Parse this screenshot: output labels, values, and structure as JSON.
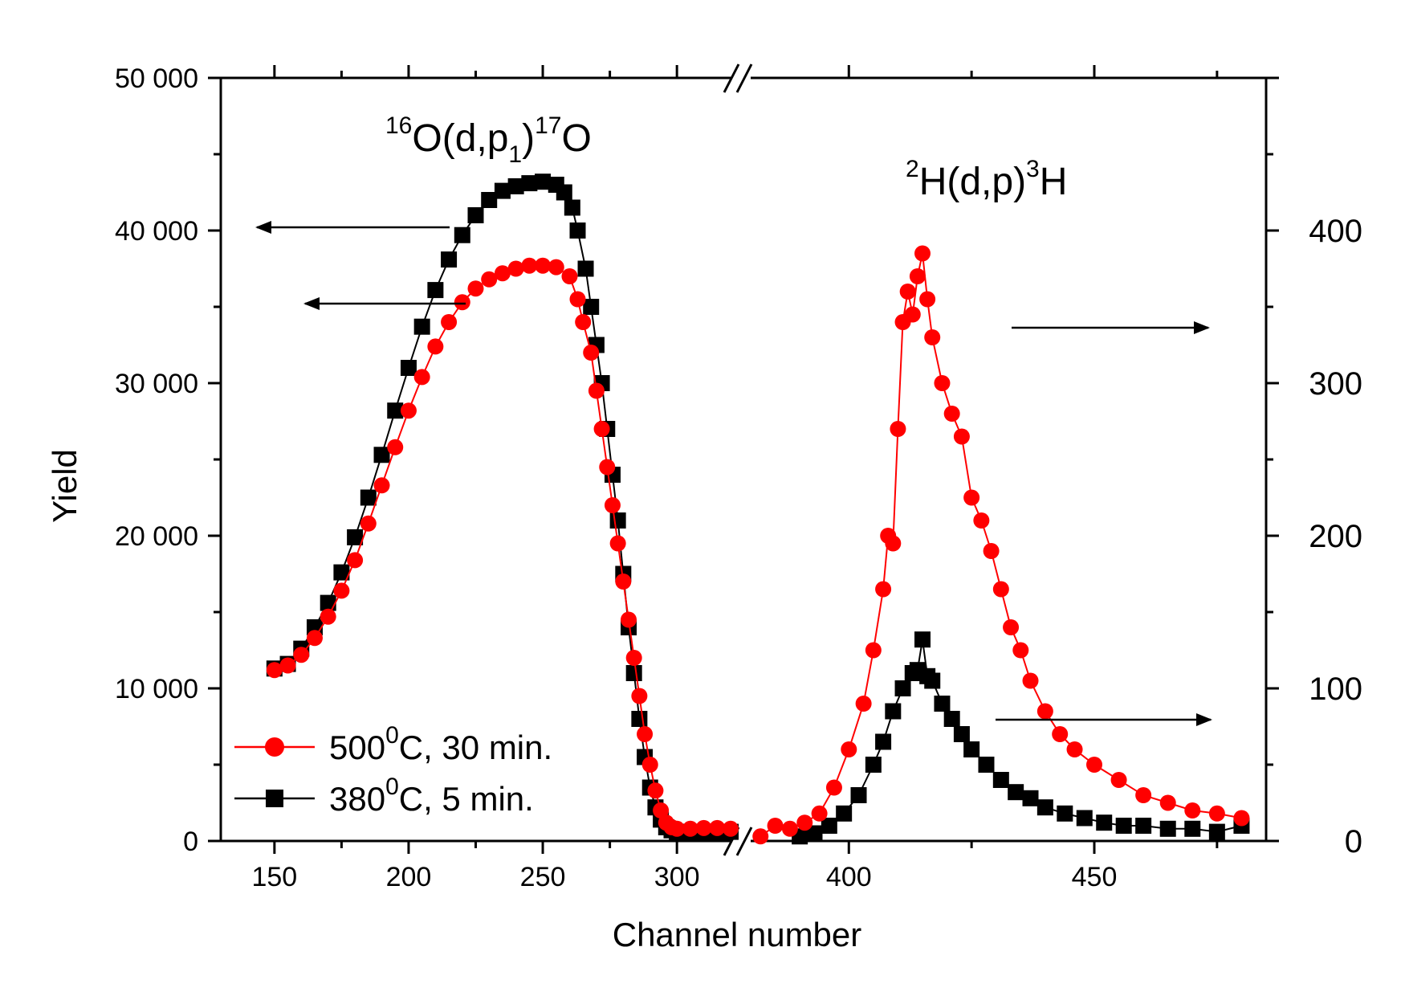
{
  "chart_data": {
    "type": "scatter",
    "xlabel": "Channel number",
    "ylabel": "Yield",
    "x_break": [
      320,
      380
    ],
    "x_segment_left": [
      130,
      320
    ],
    "x_segment_right": [
      380,
      485
    ],
    "x_ticks_left": [
      150,
      200,
      250,
      300
    ],
    "x_ticks_right": [
      400,
      450
    ],
    "ylim_left": [
      0,
      50000
    ],
    "yticks_left": [
      0,
      10000,
      20000,
      30000,
      40000,
      50000
    ],
    "ytick_labels_left": [
      "0",
      "10 000",
      "20 000",
      "30 000",
      "40 000",
      "50 000"
    ],
    "ylim_right": [
      0,
      500
    ],
    "yticks_right": [
      0,
      100,
      200,
      300,
      400
    ],
    "ytick_labels_right": [
      "0",
      "100",
      "200",
      "300",
      "400"
    ],
    "annotations": {
      "oxygen": {
        "pre_sup": "16",
        "a": "O(d,p",
        "sub": "1",
        "b": ")",
        "sup": "17",
        "c": "O"
      },
      "deuterium": {
        "pre_sup": "2",
        "a": "H(d,p)",
        "sup": "3",
        "c": "H"
      }
    },
    "legend": [
      {
        "name_main": "500",
        "name_sup": "0",
        "name_rest": "C,  30 min.",
        "color": "#ff0000",
        "marker": "circle"
      },
      {
        "name_main": "380",
        "name_sup": "0",
        "name_rest": "C, 5 min.",
        "color": "#000000",
        "marker": "square"
      }
    ],
    "series": [
      {
        "name": "500°C, 30 min.",
        "color": "#ff0000",
        "marker": "circle",
        "axis_left_points": [
          [
            150,
            11200
          ],
          [
            155,
            11500
          ],
          [
            160,
            12200
          ],
          [
            165,
            13300
          ],
          [
            170,
            14700
          ],
          [
            175,
            16400
          ],
          [
            180,
            18400
          ],
          [
            185,
            20800
          ],
          [
            190,
            23300
          ],
          [
            195,
            25800
          ],
          [
            200,
            28200
          ],
          [
            205,
            30400
          ],
          [
            210,
            32400
          ],
          [
            215,
            34000
          ],
          [
            220,
            35300
          ],
          [
            225,
            36200
          ],
          [
            230,
            36800
          ],
          [
            235,
            37200
          ],
          [
            240,
            37500
          ],
          [
            245,
            37700
          ],
          [
            250,
            37700
          ],
          [
            255,
            37600
          ],
          [
            260,
            37000
          ],
          [
            263,
            35500
          ],
          [
            265,
            34000
          ],
          [
            268,
            32000
          ],
          [
            270,
            29500
          ],
          [
            272,
            27000
          ],
          [
            274,
            24500
          ],
          [
            276,
            22000
          ],
          [
            278,
            19500
          ],
          [
            280,
            17000
          ],
          [
            282,
            14500
          ],
          [
            284,
            12000
          ],
          [
            286,
            9500
          ],
          [
            288,
            7000
          ],
          [
            290,
            5000
          ],
          [
            292,
            3300
          ],
          [
            294,
            2000
          ],
          [
            296,
            1200
          ],
          [
            298,
            900
          ],
          [
            300,
            800
          ],
          [
            305,
            800
          ],
          [
            310,
            850
          ],
          [
            315,
            850
          ],
          [
            320,
            800
          ]
        ],
        "axis_right_points": [
          [
            382,
            3
          ],
          [
            385,
            10
          ],
          [
            388,
            8
          ],
          [
            391,
            12
          ],
          [
            394,
            18
          ],
          [
            397,
            35
          ],
          [
            400,
            60
          ],
          [
            403,
            90
          ],
          [
            405,
            125
          ],
          [
            407,
            165
          ],
          [
            408,
            200
          ],
          [
            409,
            195
          ],
          [
            410,
            270
          ],
          [
            411,
            340
          ],
          [
            412,
            360
          ],
          [
            413,
            345
          ],
          [
            414,
            370
          ],
          [
            415,
            385
          ],
          [
            416,
            355
          ],
          [
            417,
            330
          ],
          [
            419,
            300
          ],
          [
            421,
            280
          ],
          [
            423,
            265
          ],
          [
            425,
            225
          ],
          [
            427,
            210
          ],
          [
            429,
            190
          ],
          [
            431,
            165
          ],
          [
            433,
            140
          ],
          [
            435,
            125
          ],
          [
            437,
            105
          ],
          [
            440,
            85
          ],
          [
            443,
            70
          ],
          [
            446,
            60
          ],
          [
            450,
            50
          ],
          [
            455,
            40
          ],
          [
            460,
            30
          ],
          [
            465,
            25
          ],
          [
            470,
            20
          ],
          [
            475,
            18
          ],
          [
            480,
            15
          ]
        ]
      },
      {
        "name": "380°C, 5 min.",
        "color": "#000000",
        "marker": "square",
        "axis_left_points": [
          [
            150,
            11300
          ],
          [
            155,
            11600
          ],
          [
            160,
            12600
          ],
          [
            165,
            14000
          ],
          [
            170,
            15600
          ],
          [
            175,
            17600
          ],
          [
            180,
            19900
          ],
          [
            185,
            22500
          ],
          [
            190,
            25300
          ],
          [
            195,
            28200
          ],
          [
            200,
            31000
          ],
          [
            205,
            33700
          ],
          [
            210,
            36100
          ],
          [
            215,
            38100
          ],
          [
            220,
            39700
          ],
          [
            225,
            41000
          ],
          [
            230,
            42000
          ],
          [
            235,
            42600
          ],
          [
            240,
            42900
          ],
          [
            245,
            43100
          ],
          [
            250,
            43200
          ],
          [
            255,
            43000
          ],
          [
            258,
            42500
          ],
          [
            261,
            41500
          ],
          [
            263,
            40000
          ],
          [
            266,
            37500
          ],
          [
            268,
            35000
          ],
          [
            270,
            32500
          ],
          [
            272,
            30000
          ],
          [
            274,
            27000
          ],
          [
            276,
            24000
          ],
          [
            278,
            21000
          ],
          [
            280,
            17500
          ],
          [
            282,
            14000
          ],
          [
            284,
            11000
          ],
          [
            286,
            8000
          ],
          [
            288,
            5500
          ],
          [
            290,
            3500
          ],
          [
            292,
            2200
          ],
          [
            294,
            1400
          ],
          [
            296,
            900
          ],
          [
            298,
            700
          ],
          [
            300,
            600
          ],
          [
            305,
            600
          ],
          [
            310,
            600
          ],
          [
            315,
            600
          ],
          [
            320,
            600
          ]
        ],
        "axis_right_points": [
          [
            390,
            3
          ],
          [
            393,
            5
          ],
          [
            396,
            10
          ],
          [
            399,
            18
          ],
          [
            402,
            30
          ],
          [
            405,
            50
          ],
          [
            407,
            65
          ],
          [
            409,
            85
          ],
          [
            411,
            100
          ],
          [
            413,
            110
          ],
          [
            414,
            112
          ],
          [
            415,
            132
          ],
          [
            416,
            108
          ],
          [
            417,
            105
          ],
          [
            419,
            90
          ],
          [
            421,
            80
          ],
          [
            423,
            70
          ],
          [
            425,
            60
          ],
          [
            428,
            50
          ],
          [
            431,
            40
          ],
          [
            434,
            32
          ],
          [
            437,
            28
          ],
          [
            440,
            22
          ],
          [
            444,
            18
          ],
          [
            448,
            15
          ],
          [
            452,
            12
          ],
          [
            456,
            10
          ],
          [
            460,
            10
          ],
          [
            465,
            8
          ],
          [
            470,
            8
          ],
          [
            475,
            6
          ],
          [
            480,
            10
          ]
        ]
      }
    ]
  }
}
